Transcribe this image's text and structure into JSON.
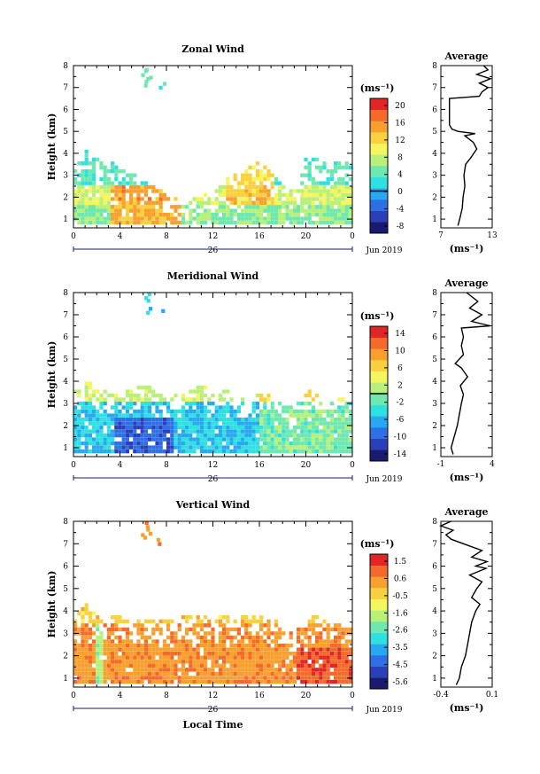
{
  "figure": {
    "date_label": "Jun 2019",
    "day_label": "26",
    "bottom_xlabel": "Local Time",
    "ylabel": "Height (km)",
    "unit_label": "(ms⁻¹)",
    "avg_title": "Average",
    "avg_unit_label": "(ms⁻¹)"
  },
  "chart_data": [
    {
      "type": "heatmap",
      "name": "zonal",
      "title": "Zonal Wind",
      "xlabel": "",
      "ylabel": "Height (km)",
      "xlim": [
        0,
        24
      ],
      "ylim": [
        0.6,
        8
      ],
      "x_ticks": [
        "0",
        "4",
        "8",
        "12",
        "16",
        "20",
        "0"
      ],
      "y_ticks": [
        "1",
        "2",
        "3",
        "4",
        "5",
        "6",
        "7",
        "8"
      ],
      "colorbar": {
        "ticks": [
          "20",
          "16",
          "12",
          "8",
          "4",
          "0",
          "-4",
          "-8"
        ],
        "min": -10,
        "max": 22,
        "zero_line": 0
      },
      "coverage": [
        [
          0,
          3.2
        ],
        [
          1,
          4.2
        ],
        [
          2,
          3.6
        ],
        [
          3,
          3.6
        ],
        [
          4,
          3.2
        ],
        [
          5,
          3.0
        ],
        [
          6,
          2.6
        ],
        [
          7,
          2.4
        ],
        [
          8,
          2.0
        ],
        [
          9,
          1.8
        ],
        [
          10,
          1.8
        ],
        [
          11,
          2.0
        ],
        [
          12,
          2.2
        ],
        [
          13,
          2.8
        ],
        [
          14,
          3.0
        ],
        [
          15,
          3.4
        ],
        [
          16,
          3.6
        ],
        [
          17,
          3.0
        ],
        [
          18,
          2.4
        ],
        [
          19,
          2.2
        ],
        [
          20,
          4.0
        ],
        [
          21,
          3.6
        ],
        [
          22,
          3.4
        ],
        [
          23,
          3.6
        ],
        [
          24,
          3.2
        ]
      ],
      "values_desc": "Approximate wind field, ms-1: 4-10 near 1-1.5 km early hours; 14-18 around 1-2 km between 3 and 8 LT; 10-16 at 2-3 km between 14 and 16 LT; 2-6 elsewhere above 2 km",
      "sample_profile": [
        [
          0.9,
          6
        ],
        [
          1.2,
          10
        ],
        [
          1.6,
          12
        ],
        [
          2.0,
          14
        ],
        [
          2.5,
          12
        ],
        [
          3.0,
          8
        ],
        [
          3.5,
          5
        ],
        [
          4.0,
          3
        ]
      ],
      "average_profile": {
        "xlim": [
          7,
          13
        ],
        "x_ticks": [
          "7",
          "13"
        ],
        "points": [
          [
            9.0,
            0.7
          ],
          [
            9.2,
            1.0
          ],
          [
            9.5,
            1.5
          ],
          [
            9.6,
            2.0
          ],
          [
            9.8,
            2.5
          ],
          [
            9.7,
            3.0
          ],
          [
            9.9,
            3.5
          ],
          [
            10.5,
            3.8
          ],
          [
            11.2,
            4.2
          ],
          [
            10.8,
            4.5
          ],
          [
            9.8,
            4.8
          ],
          [
            11.0,
            4.9
          ],
          [
            9.0,
            5.0
          ],
          [
            8.3,
            5.1
          ],
          [
            8.0,
            5.3
          ],
          [
            8.0,
            6.0
          ],
          [
            8.0,
            6.5
          ],
          [
            11.5,
            6.6
          ],
          [
            11.8,
            6.8
          ],
          [
            12.5,
            7.0
          ],
          [
            11.5,
            7.2
          ],
          [
            12.8,
            7.4
          ],
          [
            11.2,
            7.6
          ],
          [
            12.5,
            7.8
          ],
          [
            12.0,
            8.0
          ]
        ]
      }
    },
    {
      "type": "heatmap",
      "name": "meridional",
      "title": "Meridional Wind",
      "xlabel": "",
      "ylabel": "Height (km)",
      "xlim": [
        0,
        24
      ],
      "ylim": [
        0.6,
        8
      ],
      "x_ticks": [
        "0",
        "4",
        "8",
        "12",
        "16",
        "20",
        "0"
      ],
      "y_ticks": [
        "1",
        "2",
        "3",
        "4",
        "5",
        "6",
        "7",
        "8"
      ],
      "colorbar": {
        "ticks": [
          "14",
          "10",
          "6",
          "2",
          "-2",
          "-6",
          "-10",
          "-14"
        ],
        "min": -16,
        "max": 16,
        "zero_line": 0
      },
      "coverage": [
        [
          0,
          3.6
        ],
        [
          1,
          4.0
        ],
        [
          2,
          3.6
        ],
        [
          3,
          3.4
        ],
        [
          4,
          3.4
        ],
        [
          5,
          3.6
        ],
        [
          6,
          3.8
        ],
        [
          7,
          3.4
        ],
        [
          8,
          3.2
        ],
        [
          9,
          3.4
        ],
        [
          10,
          3.6
        ],
        [
          11,
          3.8
        ],
        [
          12,
          3.4
        ],
        [
          13,
          3.6
        ],
        [
          14,
          3.2
        ],
        [
          15,
          3.0
        ],
        [
          16,
          3.4
        ],
        [
          17,
          3.2
        ],
        [
          18,
          3.0
        ],
        [
          19,
          2.8
        ],
        [
          20,
          3.6
        ],
        [
          21,
          3.2
        ],
        [
          22,
          3.0
        ],
        [
          23,
          3.4
        ],
        [
          24,
          3.0
        ]
      ],
      "values_desc": "Approximate wind field, ms-1: -8 to -12 near 1-2 km between 4 and 8 LT; -2 to -6 in most of the layer below 3 km; 0 to 6 above 3 km and after 16 LT",
      "sample_profile": [
        [
          0.9,
          -4
        ],
        [
          1.2,
          -6
        ],
        [
          1.6,
          -10
        ],
        [
          2.0,
          -8
        ],
        [
          2.5,
          -4
        ],
        [
          3.0,
          -1
        ],
        [
          3.5,
          2
        ],
        [
          4.0,
          4
        ]
      ],
      "average_profile": {
        "xlim": [
          -1,
          4
        ],
        "x_ticks": [
          "-1",
          "4"
        ],
        "points": [
          [
            0.2,
            0.7
          ],
          [
            0.0,
            1.0
          ],
          [
            0.3,
            1.5
          ],
          [
            0.6,
            2.0
          ],
          [
            0.8,
            2.5
          ],
          [
            1.0,
            3.0
          ],
          [
            1.2,
            3.4
          ],
          [
            0.9,
            3.8
          ],
          [
            1.6,
            4.2
          ],
          [
            1.0,
            4.6
          ],
          [
            0.4,
            4.8
          ],
          [
            0.8,
            5.0
          ],
          [
            1.2,
            5.2
          ],
          [
            1.0,
            5.6
          ],
          [
            1.2,
            6.0
          ],
          [
            1.0,
            6.4
          ],
          [
            3.8,
            6.5
          ],
          [
            2.0,
            6.7
          ],
          [
            3.0,
            7.0
          ],
          [
            1.8,
            7.3
          ],
          [
            2.6,
            7.6
          ],
          [
            1.5,
            8.0
          ]
        ]
      }
    },
    {
      "type": "heatmap",
      "name": "vertical",
      "title": "Vertical Wind",
      "xlabel": "Local Time",
      "ylabel": "Height (km)",
      "xlim": [
        0,
        24
      ],
      "ylim": [
        0.6,
        8
      ],
      "x_ticks": [
        "0",
        "4",
        "8",
        "12",
        "16",
        "20",
        "0"
      ],
      "y_ticks": [
        "1",
        "2",
        "3",
        "4",
        "5",
        "6",
        "7",
        "8"
      ],
      "colorbar": {
        "ticks": [
          "1.5",
          "0.6",
          "-0.5",
          "-1.6",
          "-2.6",
          "-3.5",
          "-4.5",
          "-5.6"
        ],
        "min": -6,
        "max": 2,
        "zero_line": null
      },
      "coverage": [
        [
          0,
          3.8
        ],
        [
          1,
          4.2
        ],
        [
          2,
          3.8
        ],
        [
          3,
          3.8
        ],
        [
          4,
          3.6
        ],
        [
          5,
          3.4
        ],
        [
          6,
          3.6
        ],
        [
          7,
          3.4
        ],
        [
          8,
          3.6
        ],
        [
          9,
          3.6
        ],
        [
          10,
          3.8
        ],
        [
          11,
          3.8
        ],
        [
          12,
          3.8
        ],
        [
          13,
          3.8
        ],
        [
          14,
          3.8
        ],
        [
          15,
          3.8
        ],
        [
          16,
          3.8
        ],
        [
          17,
          3.6
        ],
        [
          18,
          3.2
        ],
        [
          19,
          3.0
        ],
        [
          20,
          3.6
        ],
        [
          21,
          3.8
        ],
        [
          22,
          3.4
        ],
        [
          23,
          3.4
        ],
        [
          24,
          3.2
        ]
      ],
      "values_desc": "Approximate wind field, ms-1: about 0 to 0.8 over most of the layer below 4 km; about 1.0 to 1.5 near 1-2 km after 20 LT; about -1.5 in a narrow column near 2 LT",
      "sample_profile": [
        [
          0.9,
          0.6
        ],
        [
          1.5,
          0.4
        ],
        [
          2.0,
          0.2
        ],
        [
          2.5,
          0.4
        ],
        [
          3.0,
          0.6
        ],
        [
          3.5,
          0.3
        ],
        [
          4.0,
          0.0
        ]
      ],
      "average_profile": {
        "xlim": [
          -0.4,
          0.1
        ],
        "x_ticks": [
          "-0.4",
          "0.1"
        ],
        "points": [
          [
            -0.25,
            0.7
          ],
          [
            -0.22,
            1.0
          ],
          [
            -0.2,
            1.5
          ],
          [
            -0.16,
            2.0
          ],
          [
            -0.14,
            2.5
          ],
          [
            -0.12,
            3.0
          ],
          [
            -0.1,
            3.5
          ],
          [
            -0.06,
            4.0
          ],
          [
            -0.02,
            4.3
          ],
          [
            -0.1,
            4.6
          ],
          [
            -0.05,
            5.0
          ],
          [
            0.0,
            5.3
          ],
          [
            -0.12,
            5.6
          ],
          [
            0.04,
            5.9
          ],
          [
            -0.06,
            6.0
          ],
          [
            0.05,
            6.2
          ],
          [
            -0.1,
            6.4
          ],
          [
            0.0,
            6.7
          ],
          [
            -0.18,
            7.0
          ],
          [
            -0.3,
            7.2
          ],
          [
            -0.35,
            7.4
          ],
          [
            -0.28,
            7.6
          ],
          [
            -0.4,
            7.8
          ],
          [
            -0.3,
            8.0
          ]
        ]
      }
    }
  ],
  "colors": {
    "wind_cmap": [
      "#1a1a6e",
      "#2b3fb8",
      "#2e6fe6",
      "#27a8f0",
      "#2ee0e0",
      "#6fe8b0",
      "#b8f07a",
      "#f5f560",
      "#f8d040",
      "#f7a030",
      "#f46a2a",
      "#e02626"
    ]
  }
}
